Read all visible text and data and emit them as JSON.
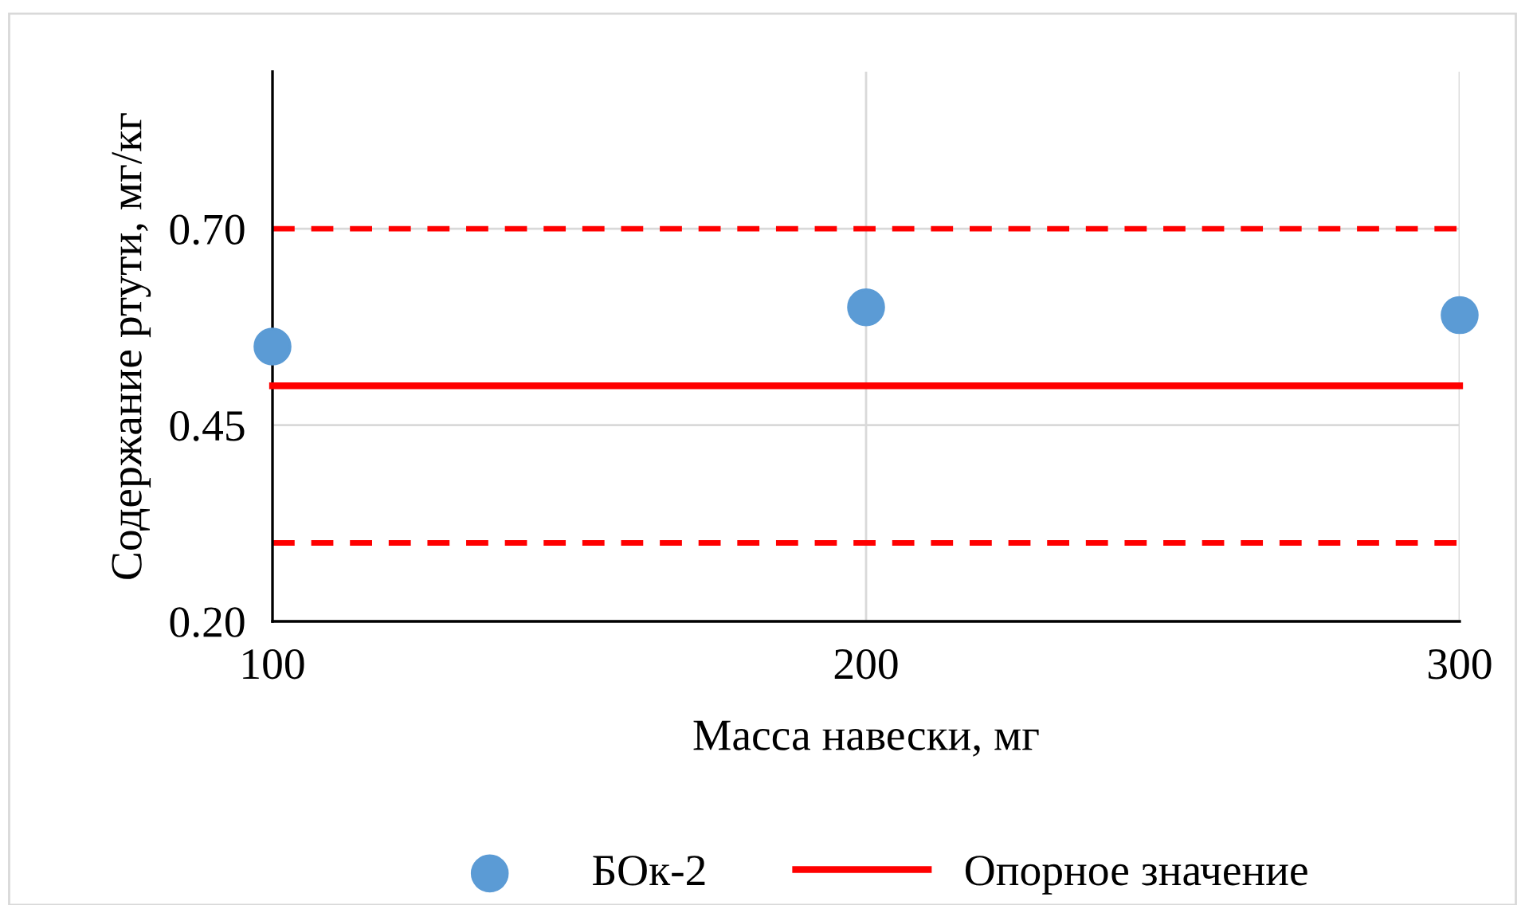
{
  "chart_data": {
    "type": "scatter",
    "xlabel": "Масса навески, мг",
    "ylabel": "Содержание ртути, мг/кг",
    "series": [
      {
        "name": "БОк-2",
        "color": "#5b9bd5",
        "x": [
          100,
          200,
          300
        ],
        "values": [
          0.55,
          0.6,
          0.59
        ],
        "marker": "circle"
      },
      {
        "name": "Опорное значение",
        "type": "line",
        "color": "#ff0000",
        "x": [
          100,
          300
        ],
        "values": [
          0.5,
          0.5
        ],
        "marker": "none",
        "line_style": "solid"
      }
    ],
    "ref_lines": [
      {
        "axis": "y",
        "value": 0.7,
        "color": "#ff0000",
        "line_style": "dashed"
      },
      {
        "axis": "y",
        "value": 0.3,
        "color": "#ff0000",
        "line_style": "dashed"
      }
    ],
    "xlim": [
      100,
      300
    ],
    "xticks": [
      100,
      200,
      300
    ],
    "ylim": [
      0.2,
      0.9
    ],
    "yticks": [
      {
        "value": 0.2,
        "label": "0.20"
      },
      {
        "value": 0.45,
        "label": "0.45"
      },
      {
        "value": 0.7,
        "label": "0.70"
      }
    ],
    "grid": true,
    "legend": "bottom"
  }
}
